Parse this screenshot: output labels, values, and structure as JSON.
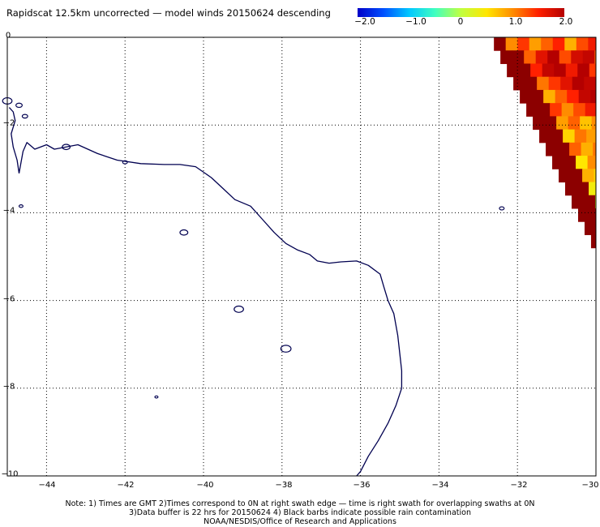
{
  "title": "Rapidscat 12.5km uncorrected — model winds 20150624 descending",
  "colorbar": {
    "min": -2.0,
    "max": 2.0,
    "tick_labels": [
      "−2.0",
      "−1.0",
      "0",
      "1.0",
      "2.0"
    ],
    "tick_values": [
      -2.0,
      -1.0,
      0.0,
      1.0,
      2.0
    ],
    "colors": [
      "#0000c8",
      "#0050ff",
      "#00c8ff",
      "#40ffc0",
      "#c0ff40",
      "#ffe600",
      "#ff8c00",
      "#ff2000",
      "#b40000"
    ]
  },
  "map": {
    "lon_range": [
      -45,
      -30
    ],
    "lat_range": [
      -10,
      0
    ],
    "x_tick_labels": [
      "−44",
      "−42",
      "−40",
      "−38",
      "−36",
      "−34",
      "−32",
      "−30"
    ],
    "x_tick_values": [
      -44,
      -42,
      -40,
      -38,
      -36,
      -34,
      -32,
      -30
    ],
    "y_tick_labels": [
      "0",
      "−2",
      "−4",
      "−6",
      "−8",
      "−10"
    ],
    "y_tick_values": [
      0,
      -2,
      -4,
      -6,
      -8,
      -10
    ],
    "gridlines": "dotted",
    "coast_color": "#000050",
    "frame_color": "#000000",
    "swath": {
      "cell_deg": 0.3,
      "top_lon": -32.6,
      "rows": [
        [
          9,
          1.0,
          1.4,
          0.9,
          1.2,
          1.5,
          0.8,
          1.3,
          1.6,
          1.1,
          1.4
        ],
        [
          9,
          9,
          1.2,
          1.7,
          2.1,
          1.3,
          1.8,
          1.9,
          1.2,
          1.5,
          1.7
        ],
        [
          9,
          9,
          1.5,
          1.9,
          2.4,
          1.6,
          2.3,
          1.4,
          1.8,
          2.2,
          1.6
        ],
        [
          9,
          9,
          1.1,
          1.4,
          1.7,
          2.2,
          1.9,
          1.3,
          1.6,
          2.0
        ],
        [
          9,
          9,
          0.8,
          1.2,
          1.5,
          1.9,
          2.1,
          1.5,
          1.2,
          1.8
        ],
        [
          9,
          9,
          1.4,
          1.0,
          1.3,
          1.6,
          1.8,
          1.1,
          1.7,
          1.9
        ],
        [
          9,
          9,
          0.9,
          1.2,
          0.7,
          1.0,
          1.4,
          1.2,
          1.8
        ],
        [
          9,
          9,
          0.6,
          1.1,
          0.9,
          1.3,
          1.6,
          1.0,
          1.5
        ],
        [
          9,
          9,
          1.2,
          0.8,
          1.1,
          0.7,
          1.3,
          1.5
        ],
        [
          9,
          9,
          0.5,
          1.0,
          0.9,
          1.2,
          1.4
        ],
        [
          9,
          9,
          0.8,
          0.6,
          1.0,
          0.9,
          1.3
        ],
        [
          9,
          9,
          0.4,
          0.3,
          0.7,
          1.1
        ],
        [
          9,
          9,
          0.2,
          0.5,
          0.6,
          0.9
        ],
        [
          9,
          9,
          0.1,
          0.3,
          0.4
        ],
        [
          9,
          9,
          0.0,
          0.2,
          0.5
        ],
        [
          9,
          9,
          9,
          9
        ],
        [
          9,
          9,
          9
        ],
        [
          9,
          9,
          9
        ],
        [
          9,
          9
        ],
        [
          9,
          9
        ],
        [
          9
        ],
        [
          9
        ]
      ]
    },
    "coastline": [
      [
        -44.7,
        -3.1
      ],
      [
        -44.6,
        -2.6
      ],
      [
        -44.5,
        -2.4
      ],
      [
        -44.3,
        -2.55
      ],
      [
        -44.0,
        -2.45
      ],
      [
        -43.8,
        -2.55
      ],
      [
        -43.2,
        -2.45
      ],
      [
        -42.7,
        -2.65
      ],
      [
        -42.2,
        -2.8
      ],
      [
        -41.6,
        -2.88
      ],
      [
        -41.0,
        -2.9
      ],
      [
        -40.6,
        -2.9
      ],
      [
        -40.2,
        -2.95
      ],
      [
        -39.8,
        -3.2
      ],
      [
        -39.5,
        -3.45
      ],
      [
        -39.2,
        -3.7
      ],
      [
        -38.8,
        -3.85
      ],
      [
        -38.5,
        -4.15
      ],
      [
        -38.2,
        -4.45
      ],
      [
        -37.9,
        -4.7
      ],
      [
        -37.6,
        -4.85
      ],
      [
        -37.3,
        -4.95
      ],
      [
        -37.1,
        -5.1
      ],
      [
        -36.8,
        -5.15
      ],
      [
        -36.5,
        -5.12
      ],
      [
        -36.1,
        -5.1
      ],
      [
        -35.8,
        -5.2
      ],
      [
        -35.5,
        -5.4
      ],
      [
        -35.4,
        -5.7
      ],
      [
        -35.3,
        -6.0
      ],
      [
        -35.15,
        -6.3
      ],
      [
        -35.05,
        -6.8
      ],
      [
        -35.0,
        -7.2
      ],
      [
        -34.95,
        -7.6
      ],
      [
        -34.95,
        -8.0
      ],
      [
        -35.1,
        -8.4
      ],
      [
        -35.3,
        -8.8
      ],
      [
        -35.55,
        -9.2
      ],
      [
        -35.8,
        -9.55
      ],
      [
        -36.0,
        -9.9
      ],
      [
        -36.1,
        -10.0
      ]
    ],
    "coastline_west": [
      [
        -44.95,
        -1.6
      ],
      [
        -44.85,
        -1.7
      ],
      [
        -44.8,
        -1.9
      ],
      [
        -44.9,
        -2.2
      ],
      [
        -44.85,
        -2.5
      ],
      [
        -44.75,
        -2.8
      ],
      [
        -44.7,
        -3.1
      ]
    ],
    "islands": [
      {
        "lon": -45.0,
        "lat": -1.45,
        "r": 0.12
      },
      {
        "lon": -44.7,
        "lat": -1.55,
        "r": 0.08
      },
      {
        "lon": -44.55,
        "lat": -1.8,
        "r": 0.07
      },
      {
        "lon": -43.5,
        "lat": -2.5,
        "r": 0.1
      },
      {
        "lon": -42.0,
        "lat": -2.85,
        "r": 0.06
      },
      {
        "lon": -44.65,
        "lat": -3.85,
        "r": 0.05
      },
      {
        "lon": -40.5,
        "lat": -4.45,
        "r": 0.1
      },
      {
        "lon": -39.1,
        "lat": -6.2,
        "r": 0.12
      },
      {
        "lon": -37.9,
        "lat": -7.1,
        "r": 0.13
      },
      {
        "lon": -32.4,
        "lat": -3.9,
        "r": 0.06
      },
      {
        "lon": -41.2,
        "lat": -8.2,
        "r": 0.04
      }
    ]
  },
  "notes": [
    "Note: 1) Times are GMT 2)Times correspond to 0N at right swath edge — time is right swath for overlapping swaths at 0N",
    "3)Data buffer is 22 hrs for 20150624 4) Black barbs indicate possible rain contamination",
    "NOAA/NESDIS/Office of Research and Applications"
  ]
}
